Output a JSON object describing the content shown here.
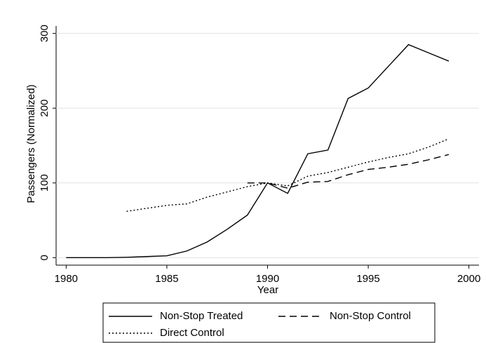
{
  "chart_data": {
    "type": "line",
    "x": [
      1980,
      1981,
      1982,
      1983,
      1984,
      1985,
      1986,
      1987,
      1988,
      1989,
      1990,
      1991,
      1992,
      1993,
      1994,
      1995,
      1996,
      1997,
      1998,
      1999
    ],
    "series": [
      {
        "name": "Non-Stop Treated",
        "color": "#000000",
        "dash": "solid",
        "values": [
          0,
          0,
          0,
          0.5,
          1.5,
          2.5,
          9,
          21,
          38,
          57,
          100,
          86,
          139,
          144,
          213,
          227,
          256,
          285,
          274,
          263
        ]
      },
      {
        "name": "Non-Stop Control",
        "color": "#000000",
        "dash": "dashed",
        "values": [
          null,
          null,
          null,
          null,
          null,
          null,
          null,
          null,
          null,
          100,
          100,
          93,
          101,
          102,
          111,
          118,
          121,
          125,
          131,
          138
        ]
      },
      {
        "name": "Direct Control",
        "color": "#000000",
        "dash": "dotted",
        "values": [
          null,
          null,
          null,
          62,
          66,
          70,
          72,
          81,
          88,
          95,
          100,
          96,
          109,
          114,
          121,
          128,
          134,
          139,
          148,
          159
        ]
      }
    ],
    "xlabel": "Year",
    "ylabel": "Passengers (Normalized)",
    "xlim": [
      1979.5,
      2000.5
    ],
    "xticks": [
      1980,
      1985,
      1990,
      1995,
      2000
    ],
    "ylim": [
      -10,
      310
    ],
    "yticks": [
      0,
      100,
      200,
      300
    ],
    "grid": true,
    "legend": "bottom"
  }
}
